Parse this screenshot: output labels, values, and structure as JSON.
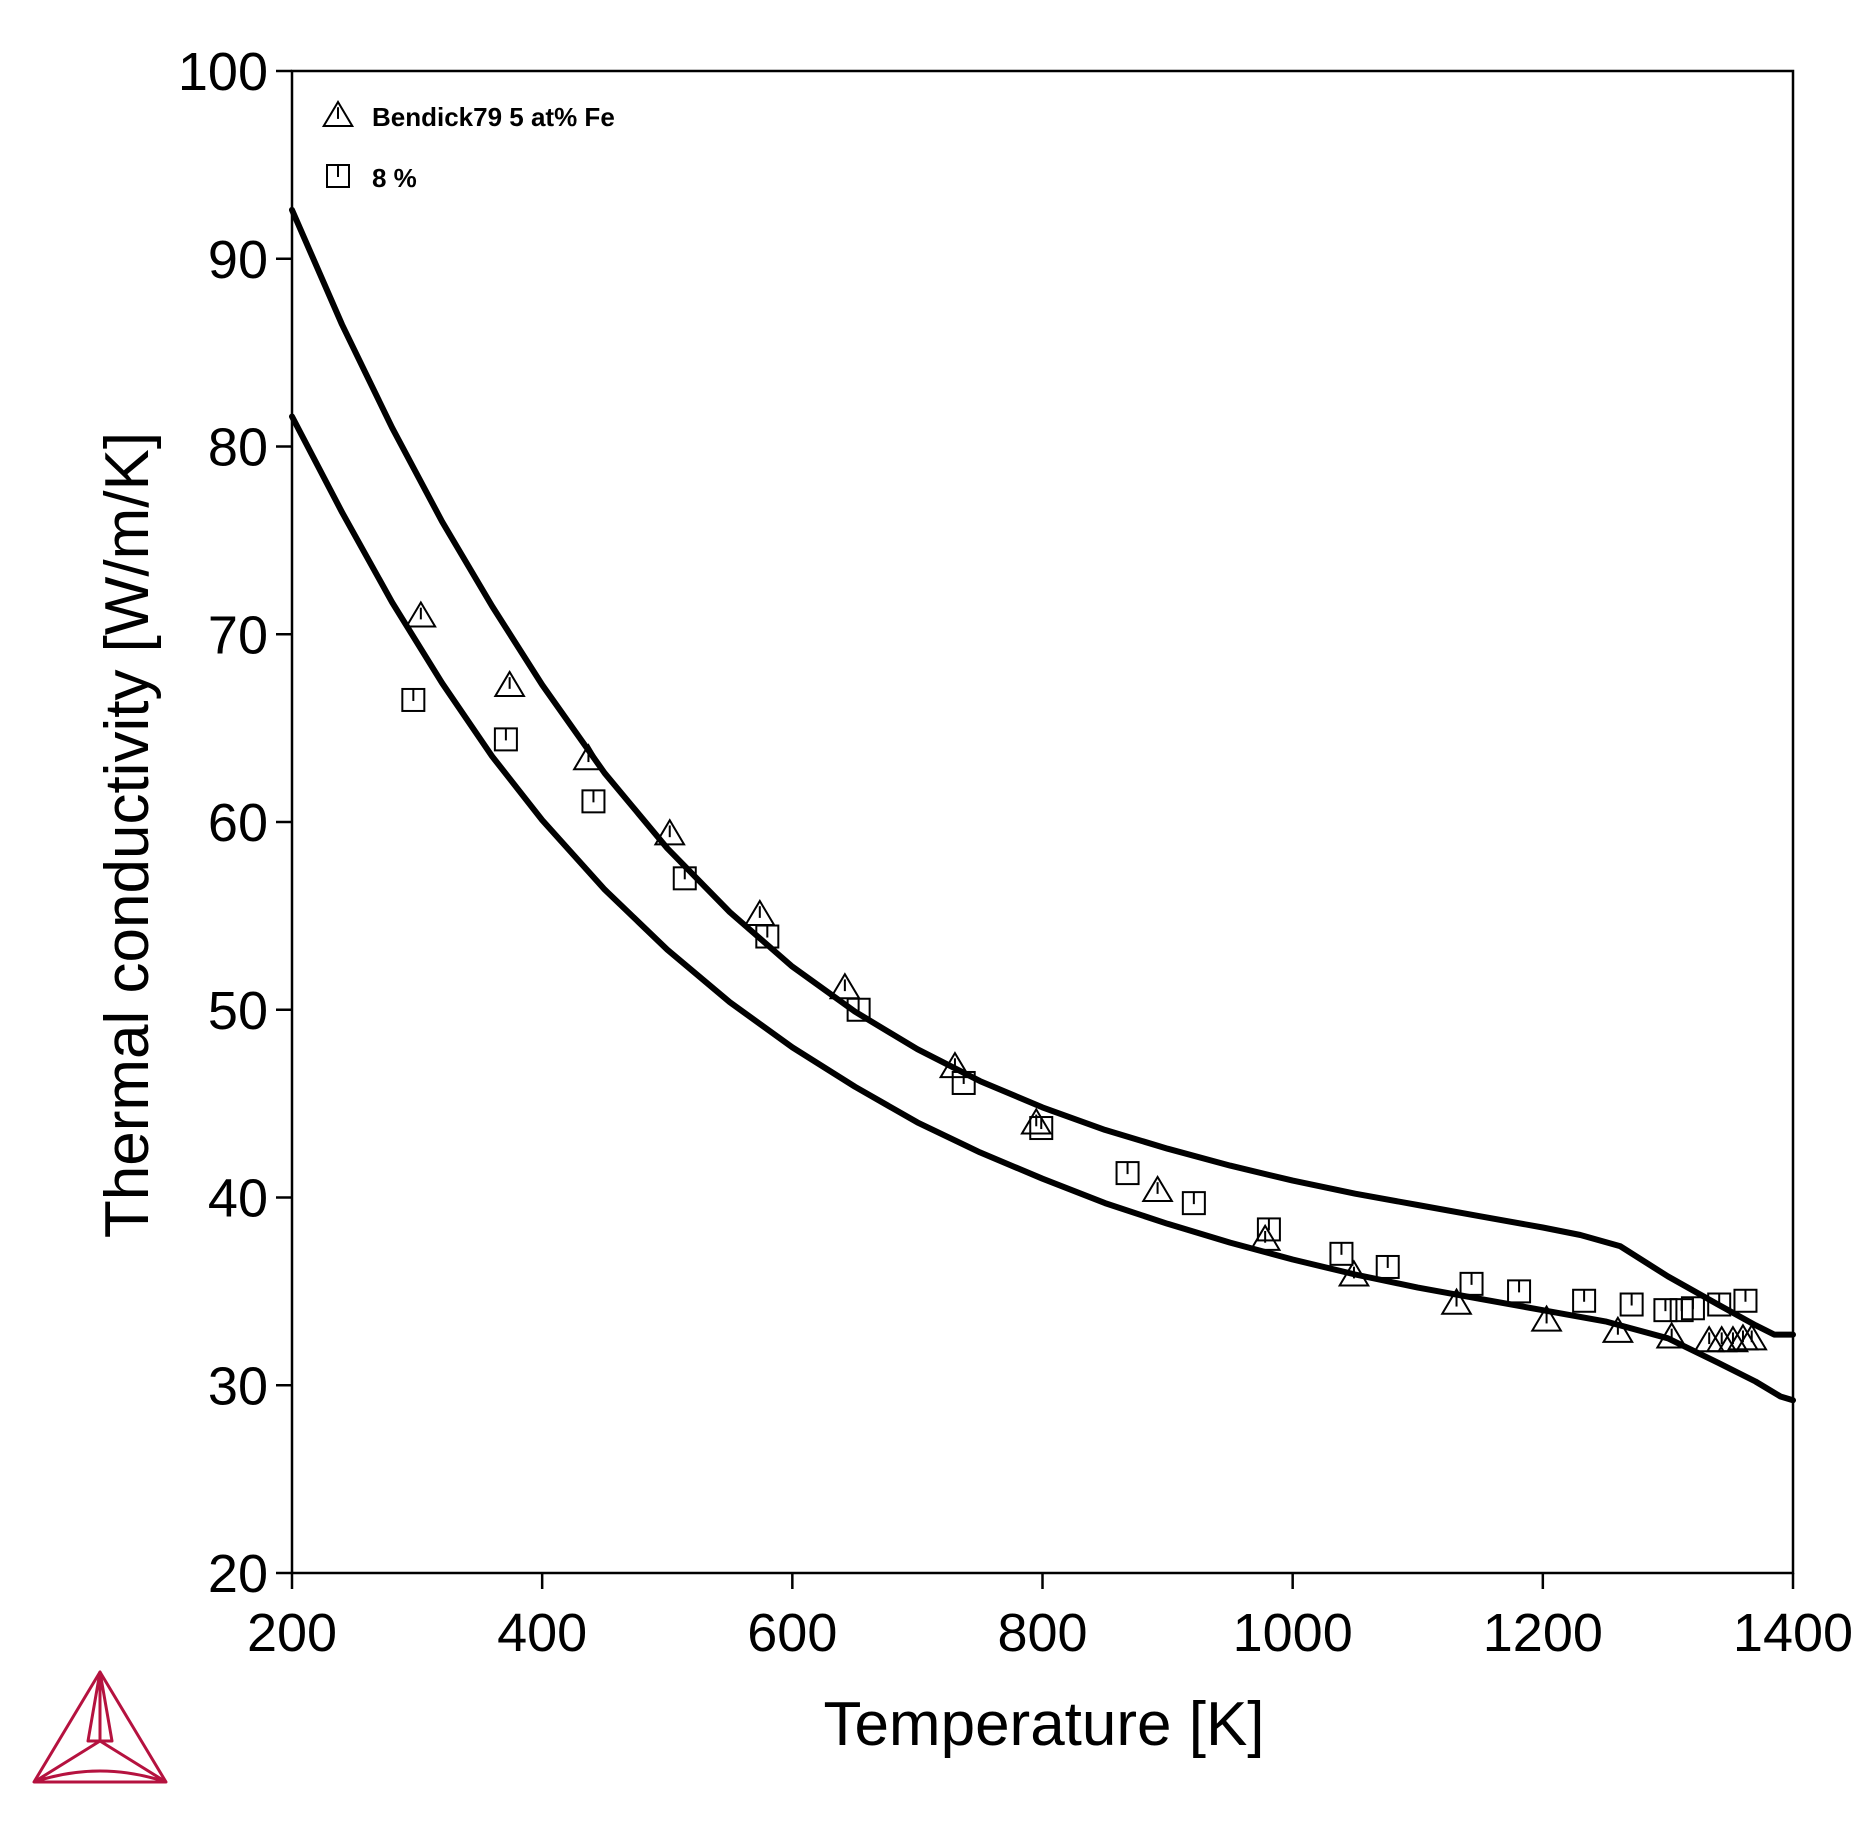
{
  "chart_data": {
    "type": "scatter",
    "title": "",
    "xlabel": "Temperature [K]",
    "ylabel": "Thermal conductivity [W/m/K]",
    "xlim": [
      200,
      1400
    ],
    "ylim": [
      20,
      100
    ],
    "x_ticks": [
      200,
      400,
      600,
      800,
      1000,
      1200,
      1400
    ],
    "y_ticks": [
      20,
      30,
      40,
      50,
      60,
      70,
      80,
      90,
      100
    ],
    "grid": false,
    "legend_position": "top-left",
    "legend": [
      {
        "label": "Bendick79 5 at% Fe",
        "marker": "triangle"
      },
      {
        "label": "8 %",
        "marker": "square"
      }
    ],
    "series": [
      {
        "name": "Bendick79 5 at% Fe",
        "kind": "scatter",
        "marker": "triangle",
        "points": [
          [
            303,
            71.0
          ],
          [
            374,
            67.3
          ],
          [
            437,
            63.4
          ],
          [
            502,
            59.4
          ],
          [
            574,
            55.1
          ],
          [
            642,
            51.2
          ],
          [
            730,
            47.0
          ],
          [
            795,
            44.0
          ],
          [
            892,
            40.4
          ],
          [
            978,
            37.8
          ],
          [
            1049,
            35.9
          ],
          [
            1131,
            34.4
          ],
          [
            1203,
            33.5
          ],
          [
            1260,
            32.9
          ],
          [
            1303,
            32.6
          ],
          [
            1333,
            32.4
          ],
          [
            1343,
            32.4
          ],
          [
            1352,
            32.4
          ],
          [
            1360,
            32.5
          ],
          [
            1367,
            32.5
          ]
        ]
      },
      {
        "name": "8 %",
        "kind": "scatter",
        "marker": "square",
        "points": [
          [
            297,
            66.5
          ],
          [
            371,
            64.4
          ],
          [
            441,
            61.1
          ],
          [
            514,
            57.0
          ],
          [
            580,
            53.9
          ],
          [
            653,
            50.0
          ],
          [
            737,
            46.1
          ],
          [
            799,
            43.7
          ],
          [
            868,
            41.3
          ],
          [
            921,
            39.7
          ],
          [
            981,
            38.3
          ],
          [
            1039,
            37.0
          ],
          [
            1076,
            36.3
          ],
          [
            1143,
            35.4
          ],
          [
            1181,
            35.0
          ],
          [
            1233,
            34.5
          ],
          [
            1271,
            34.3
          ],
          [
            1298,
            34.0
          ],
          [
            1311,
            34.0
          ],
          [
            1320,
            34.1
          ],
          [
            1341,
            34.3
          ],
          [
            1362,
            34.5
          ]
        ]
      },
      {
        "kind": "line",
        "points": [
          [
            200,
            92.6
          ],
          [
            240,
            86.5
          ],
          [
            280,
            81.0
          ],
          [
            320,
            76.0
          ],
          [
            360,
            71.5
          ],
          [
            400,
            67.3
          ],
          [
            450,
            62.6
          ],
          [
            500,
            58.6
          ],
          [
            550,
            55.2
          ],
          [
            600,
            52.3
          ],
          [
            650,
            49.9
          ],
          [
            700,
            47.9
          ],
          [
            750,
            46.2
          ],
          [
            800,
            44.8
          ],
          [
            850,
            43.6
          ],
          [
            900,
            42.6
          ],
          [
            950,
            41.7
          ],
          [
            1000,
            40.9
          ],
          [
            1050,
            40.2
          ],
          [
            1100,
            39.6
          ],
          [
            1150,
            39.0
          ],
          [
            1200,
            38.4
          ],
          [
            1230,
            38.0
          ],
          [
            1262,
            37.4
          ],
          [
            1300,
            35.8
          ],
          [
            1340,
            34.3
          ],
          [
            1370,
            33.2
          ],
          [
            1385,
            32.7
          ],
          [
            1400,
            32.7
          ]
        ]
      },
      {
        "kind": "line",
        "points": [
          [
            200,
            81.6
          ],
          [
            240,
            76.5
          ],
          [
            280,
            71.7
          ],
          [
            320,
            67.4
          ],
          [
            360,
            63.5
          ],
          [
            400,
            60.1
          ],
          [
            450,
            56.4
          ],
          [
            500,
            53.2
          ],
          [
            550,
            50.4
          ],
          [
            600,
            48.0
          ],
          [
            650,
            45.9
          ],
          [
            700,
            44.0
          ],
          [
            750,
            42.4
          ],
          [
            800,
            41.0
          ],
          [
            850,
            39.7
          ],
          [
            900,
            38.6
          ],
          [
            950,
            37.6
          ],
          [
            1000,
            36.7
          ],
          [
            1050,
            35.9
          ],
          [
            1100,
            35.2
          ],
          [
            1150,
            34.6
          ],
          [
            1200,
            34.0
          ],
          [
            1250,
            33.4
          ],
          [
            1300,
            32.5
          ],
          [
            1340,
            31.2
          ],
          [
            1370,
            30.2
          ],
          [
            1390,
            29.4
          ],
          [
            1400,
            29.2
          ]
        ]
      }
    ]
  },
  "colors": {
    "axis": "#000000",
    "line": "#000000",
    "marker": "#000000",
    "logo": "#b5123f"
  },
  "icons": {
    "logo": "thermo-calc-logo-icon"
  }
}
